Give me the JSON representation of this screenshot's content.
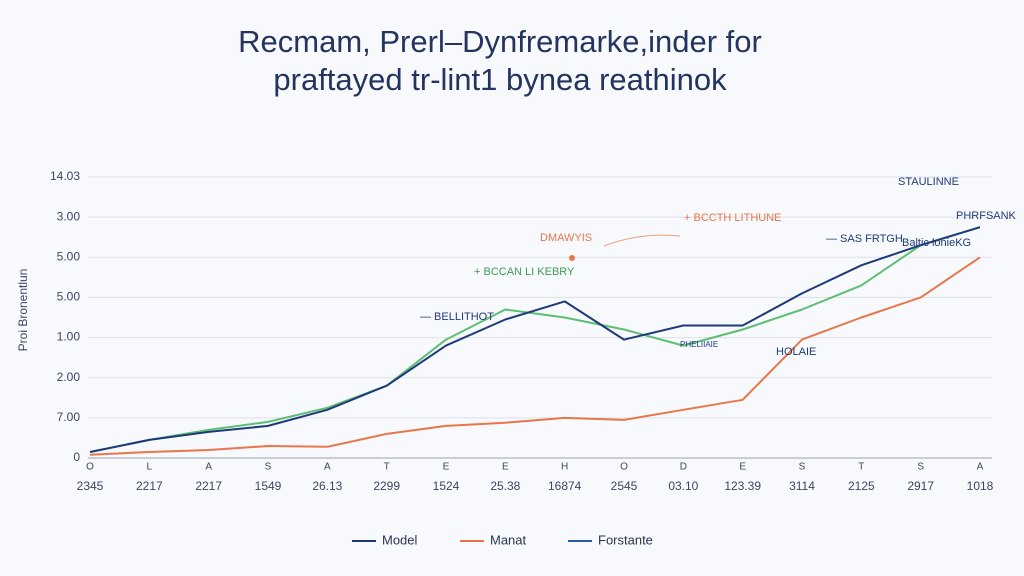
{
  "chart_data": {
    "type": "line",
    "title": [
      "Recmam, Prerl–Dynfremarke,inder for",
      "praftayed tr-lint1 bynea reathinok"
    ],
    "y_label": "Proi Bronentlun",
    "categories": [
      "2345",
      "2217",
      "2217",
      "1549",
      "26.13",
      "2299",
      "1524",
      "25.38",
      "16874",
      "2545",
      "03.10",
      "123.39",
      "3114",
      "2125",
      "2917",
      "1018"
    ],
    "category_letters": [
      "O",
      "L",
      "A",
      "S",
      "A",
      "T",
      "E",
      "E",
      "H",
      "O",
      "D",
      "E",
      "S",
      "T",
      "S",
      "A"
    ],
    "ylim": [
      0,
      7
    ],
    "yticks": [
      {
        "value": 0,
        "label": "0"
      },
      {
        "value": 1,
        "label": "7.00"
      },
      {
        "value": 2,
        "label": "2.00"
      },
      {
        "value": 3,
        "label": "1.00"
      },
      {
        "value": 4,
        "label": "5.00"
      },
      {
        "value": 5,
        "label": "5.00"
      },
      {
        "value": 6,
        "label": "3.00"
      },
      {
        "value": 7,
        "label": "14.03"
      }
    ],
    "grid": true,
    "series": [
      {
        "name": "Model",
        "color": "#1f3a7a",
        "values": [
          0.15,
          0.45,
          0.65,
          0.8,
          1.2,
          1.8,
          2.8,
          3.45,
          3.9,
          2.95,
          3.3,
          3.3,
          4.1,
          4.8,
          5.3,
          5.75
        ]
      },
      {
        "name": "Manat",
        "color": "#e8764a",
        "values": [
          0.08,
          0.15,
          0.2,
          0.3,
          0.28,
          0.6,
          0.8,
          0.88,
          1.0,
          0.95,
          1.2,
          1.45,
          2.95,
          3.5,
          4.0,
          5.0
        ]
      },
      {
        "name": "Forstante",
        "color": "#2a5ab0"
      },
      {
        "color": "#5cbf73",
        "values": [
          0.15,
          0.45,
          0.7,
          0.9,
          1.25,
          1.8,
          2.95,
          3.7,
          3.5,
          3.2,
          2.8,
          3.2,
          3.7,
          4.3,
          5.3,
          5.75
        ]
      }
    ],
    "annotations": [
      "DMAWYIS",
      "+ BCCTH LITHUNE",
      "+ BCCAN LI KEBRY",
      "— BELLITHOT",
      "STAULINNE",
      "— SAS FRTGH",
      "PHRFSANK",
      "Baltic lonieKG",
      "HOLAIE",
      "PHELIIAIE"
    ]
  }
}
